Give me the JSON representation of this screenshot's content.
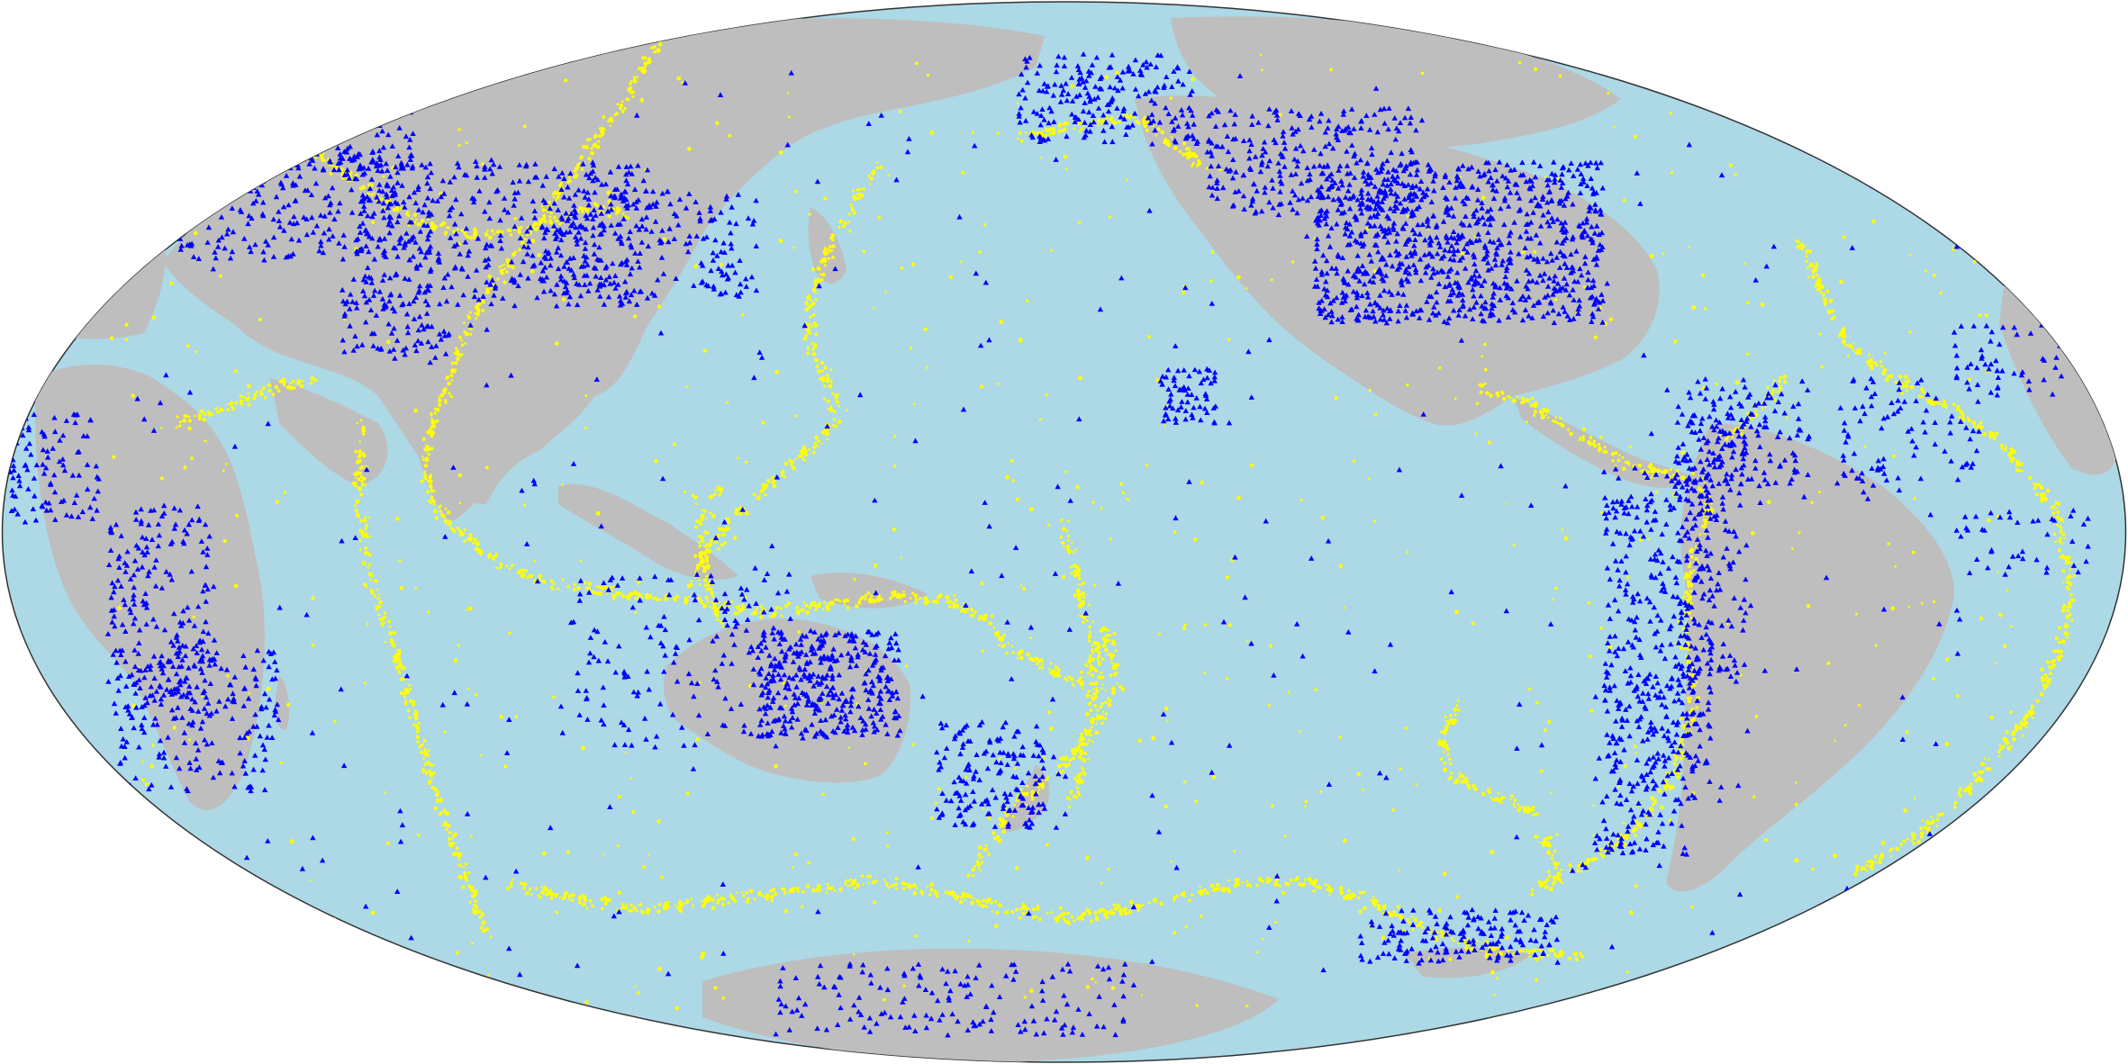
{
  "map": {
    "projection": "mollweide",
    "central_meridian": "pacific-centered",
    "colors": {
      "ocean": "#add8e6",
      "land": "#bebebe",
      "earthquake_marker": "#ffff00",
      "station_marker": "#0000ff",
      "background": "#ffffff"
    },
    "layers": [
      {
        "id": "ocean",
        "icon": "ellipse"
      },
      {
        "id": "land",
        "icon": "polygon"
      },
      {
        "id": "earthquakes",
        "icon": "yellow-dot-icon"
      },
      {
        "id": "seismic-stations",
        "icon": "blue-triangle-icon"
      }
    ]
  }
}
